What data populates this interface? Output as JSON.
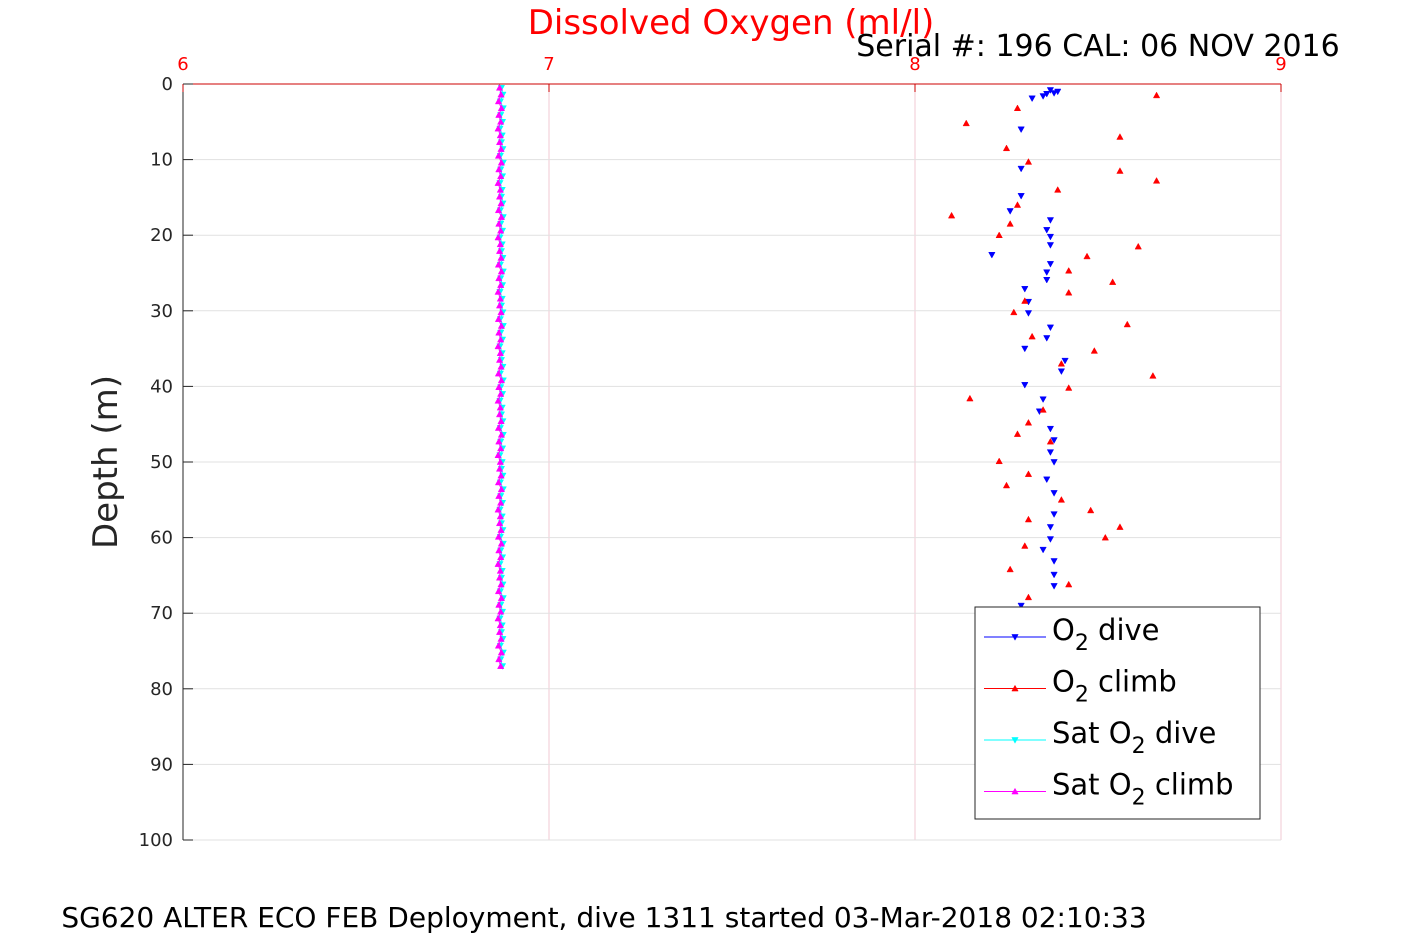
{
  "chart_data": {
    "type": "scatter",
    "title": "Dissolved Oxygen (ml/l)",
    "subtitle": "Serial #: 196  CAL: 06 NOV 2016",
    "footer": "SG620 ALTER ECO FEB Deployment, dive 1311 started 03-Mar-2018 02:10:33",
    "xlabel": "",
    "ylabel": "Depth (m)",
    "xlim": [
      6,
      9
    ],
    "ylim": [
      0,
      100
    ],
    "y_reversed": true,
    "x_axis_position": "top",
    "xticks": [
      6,
      7,
      8,
      9
    ],
    "yticks": [
      0,
      10,
      20,
      30,
      40,
      50,
      60,
      70,
      80,
      90,
      100
    ],
    "grid": true,
    "legend_position": "lower-right",
    "series": [
      {
        "name": "O2 dive",
        "legend": {
          "pre": "O",
          "sub": "2",
          "post": " dive"
        },
        "color": "#0000ff",
        "marker": "triangle-down",
        "points": [
          [
            8.39,
            1.0
          ],
          [
            8.38,
            1.2
          ],
          [
            8.36,
            1.3
          ],
          [
            8.35,
            1.6
          ],
          [
            8.32,
            1.9
          ],
          [
            8.37,
            0.8
          ],
          [
            8.29,
            6.0
          ],
          [
            8.29,
            11.2
          ],
          [
            8.29,
            14.8
          ],
          [
            8.26,
            16.8
          ],
          [
            8.37,
            18.0
          ],
          [
            8.36,
            19.3
          ],
          [
            8.37,
            20.2
          ],
          [
            8.37,
            21.3
          ],
          [
            8.21,
            22.6
          ],
          [
            8.37,
            23.8
          ],
          [
            8.36,
            24.9
          ],
          [
            8.36,
            25.9
          ],
          [
            8.3,
            27.1
          ],
          [
            8.31,
            28.8
          ],
          [
            8.31,
            30.3
          ],
          [
            8.37,
            32.2
          ],
          [
            8.36,
            33.6
          ],
          [
            8.3,
            35.0
          ],
          [
            8.41,
            36.6
          ],
          [
            8.4,
            38.0
          ],
          [
            8.3,
            39.8
          ],
          [
            8.35,
            41.7
          ],
          [
            8.34,
            43.3
          ],
          [
            8.37,
            45.6
          ],
          [
            8.38,
            47.1
          ],
          [
            8.37,
            48.7
          ],
          [
            8.38,
            50.0
          ],
          [
            8.36,
            52.3
          ],
          [
            8.38,
            54.1
          ],
          [
            8.38,
            56.9
          ],
          [
            8.37,
            58.6
          ],
          [
            8.37,
            60.2
          ],
          [
            8.35,
            61.6
          ],
          [
            8.38,
            63.1
          ],
          [
            8.38,
            64.9
          ],
          [
            8.38,
            66.4
          ],
          [
            8.29,
            69.0
          ]
        ]
      },
      {
        "name": "O2 climb",
        "legend": {
          "pre": "O",
          "sub": "2",
          "post": " climb"
        },
        "color": "#ff0000",
        "marker": "triangle-up",
        "points": [
          [
            8.66,
            1.5
          ],
          [
            8.28,
            3.2
          ],
          [
            8.14,
            5.2
          ],
          [
            8.56,
            7.0
          ],
          [
            8.25,
            8.5
          ],
          [
            8.31,
            10.3
          ],
          [
            8.56,
            11.5
          ],
          [
            8.66,
            12.8
          ],
          [
            8.39,
            14.0
          ],
          [
            8.28,
            16.0
          ],
          [
            8.1,
            17.4
          ],
          [
            8.26,
            18.5
          ],
          [
            8.23,
            20.0
          ],
          [
            8.61,
            21.5
          ],
          [
            8.47,
            22.8
          ],
          [
            8.42,
            24.7
          ],
          [
            8.54,
            26.2
          ],
          [
            8.42,
            27.6
          ],
          [
            8.3,
            28.7
          ],
          [
            8.27,
            30.2
          ],
          [
            8.58,
            31.8
          ],
          [
            8.32,
            33.4
          ],
          [
            8.49,
            35.3
          ],
          [
            8.4,
            37.0
          ],
          [
            8.65,
            38.6
          ],
          [
            8.42,
            40.2
          ],
          [
            8.15,
            41.6
          ],
          [
            8.35,
            43.1
          ],
          [
            8.31,
            44.8
          ],
          [
            8.28,
            46.3
          ],
          [
            8.37,
            47.3
          ],
          [
            8.23,
            49.9
          ],
          [
            8.31,
            51.6
          ],
          [
            8.25,
            53.1
          ],
          [
            8.4,
            55.0
          ],
          [
            8.48,
            56.4
          ],
          [
            8.31,
            57.6
          ],
          [
            8.56,
            58.6
          ],
          [
            8.52,
            60.0
          ],
          [
            8.3,
            61.1
          ],
          [
            8.26,
            64.2
          ],
          [
            8.42,
            66.2
          ],
          [
            8.31,
            67.9
          ]
        ]
      },
      {
        "name": "Sat O2 dive",
        "legend": {
          "pre": "Sat O",
          "sub": "2",
          "post": " dive"
        },
        "color": "#00ffff",
        "marker": "triangle-down",
        "x_value": 6.87,
        "depth_range": [
          0.5,
          77.0
        ],
        "depth_step": 0.9
      },
      {
        "name": "Sat O2 climb",
        "legend": {
          "pre": "Sat O",
          "sub": "2",
          "post": " climb"
        },
        "color": "#ff00ff",
        "marker": "triangle-up",
        "x_value": 6.865,
        "depth_range": [
          0.5,
          77.0
        ],
        "depth_step": 0.9
      }
    ]
  }
}
